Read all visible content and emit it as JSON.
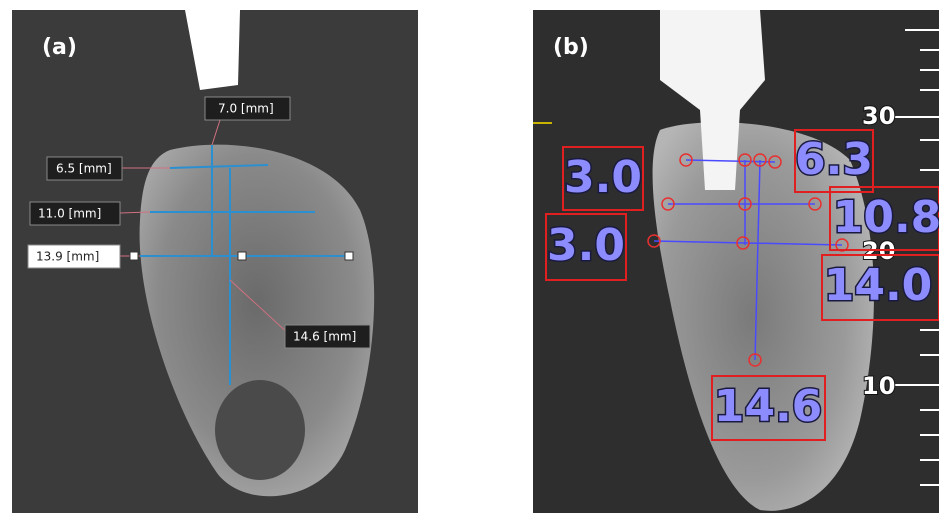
{
  "panels": [
    {
      "label": "(a)",
      "measurements": [
        "7.0 [mm]",
        "6.5 [mm]",
        "11.0 [mm]",
        "13.9 [mm]",
        "14.6 [mm]"
      ]
    },
    {
      "label": "(b)",
      "measurements": [
        "3.0",
        "3.0",
        "6.3",
        "10.8",
        "14.0",
        "14.6"
      ],
      "scale": [
        "30",
        "20",
        "10"
      ]
    }
  ]
}
